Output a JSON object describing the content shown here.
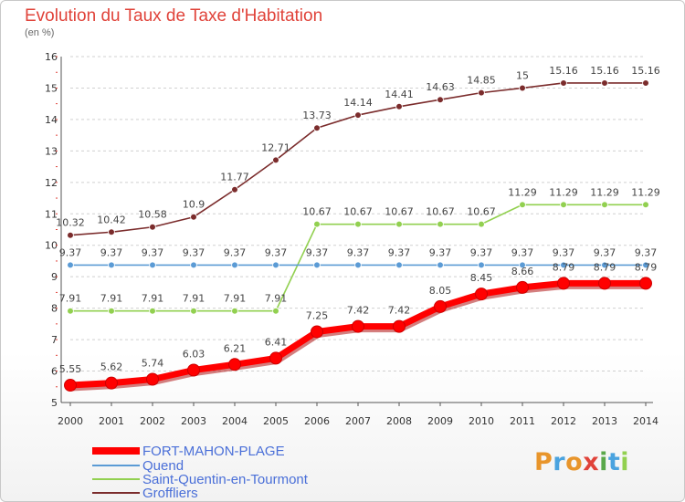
{
  "header": {
    "title": "Evolution du Taux de Taxe d'Habitation",
    "unit": "(en %)"
  },
  "legend": [
    {
      "name": "FORT-MAHON-PLAGE",
      "color": "#ff0000"
    },
    {
      "name": "Quend",
      "color": "#5b9bd5"
    },
    {
      "name": "Saint-Quentin-en-Tourmont",
      "color": "#92d050"
    },
    {
      "name": "Groffliers",
      "color": "#7b2c2c"
    }
  ],
  "logo": {
    "text": "Proxiti",
    "colors": [
      "#e8952b",
      "#4aa3df",
      "#e8952b",
      "#e0433a",
      "#5aa84a",
      "#4aa3df",
      "#92d050"
    ]
  },
  "chart_data": {
    "type": "line",
    "title": "Evolution du Taux de Taxe d'Habitation",
    "ylabel": "(en %)",
    "xlabel": "",
    "x": [
      "2000",
      "2001",
      "2002",
      "2003",
      "2004",
      "2005",
      "2006",
      "2007",
      "2008",
      "2009",
      "2010",
      "2011",
      "2012",
      "2013",
      "2014"
    ],
    "ylim": [
      5,
      16
    ],
    "yticks": [
      5,
      6,
      7,
      8,
      9,
      10,
      11,
      12,
      13,
      14,
      15,
      16
    ],
    "grid": "horizontal-dashed",
    "legend_position": "bottom-left",
    "series": [
      {
        "name": "FORT-MAHON-PLAGE",
        "color": "#ff0000",
        "values": [
          5.55,
          5.62,
          5.74,
          6.03,
          6.21,
          6.41,
          7.25,
          7.42,
          7.42,
          8.05,
          8.45,
          8.66,
          8.79,
          8.79,
          8.79
        ],
        "labels": [
          "5.55",
          "5.62",
          "5.74",
          "6.03",
          "6.21",
          "6.41",
          "7.25",
          "7.42",
          "7.42",
          "8.05",
          "8.45",
          "8.66",
          "8.79",
          "8.79",
          "8.79"
        ]
      },
      {
        "name": "Quend",
        "color": "#5b9bd5",
        "values": [
          9.37,
          9.37,
          9.37,
          9.37,
          9.37,
          9.37,
          9.37,
          9.37,
          9.37,
          9.37,
          9.37,
          9.37,
          9.37,
          9.37,
          9.37
        ],
        "labels": [
          "9.37",
          "9.37",
          "9.37",
          "9.37",
          "9.37",
          "9.37",
          "9.37",
          "9.37",
          "9.37",
          "9.37",
          "9.37",
          "9.37",
          "9.37",
          "9.37",
          "9.37"
        ]
      },
      {
        "name": "Saint-Quentin-en-Tourmont",
        "color": "#92d050",
        "values": [
          7.91,
          7.91,
          7.91,
          7.91,
          7.91,
          7.91,
          10.67,
          10.67,
          10.67,
          10.67,
          10.67,
          11.29,
          11.29,
          11.29,
          11.29
        ],
        "labels": [
          "7.91",
          "7.91",
          "7.91",
          "7.91",
          "7.91",
          "7.91",
          "10.67",
          "10.67",
          "10.67",
          "10.67",
          "10.67",
          "11.29",
          "11.29",
          "11.29",
          "11.29"
        ]
      },
      {
        "name": "Groffliers",
        "color": "#7b2c2c",
        "values": [
          10.32,
          10.42,
          10.58,
          10.9,
          11.77,
          12.71,
          13.73,
          14.14,
          14.41,
          14.63,
          14.85,
          15,
          15.16,
          15.16,
          15.16
        ],
        "labels": [
          "10.32",
          "10.42",
          "10.58",
          "10.9",
          "11.77",
          "12.71",
          "13.73",
          "14.14",
          "14.41",
          "14.63",
          "14.85",
          "15",
          "15.16",
          "15.16",
          "15.16"
        ]
      }
    ]
  }
}
